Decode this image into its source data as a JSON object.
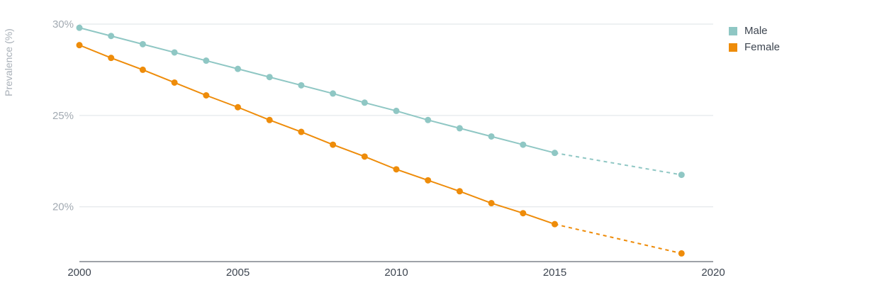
{
  "chart_data": {
    "type": "line",
    "ylabel": "Prevalence (%)",
    "xlim": [
      2000,
      2020
    ],
    "ylim": [
      17,
      30
    ],
    "grid": true,
    "legend_placement": "top-right",
    "x_ticks": [
      "2000",
      "2005",
      "2010",
      "2015",
      "2020"
    ],
    "x_tick_values": [
      2000,
      2005,
      2010,
      2015,
      2020
    ],
    "y_ticks": [
      "20%",
      "25%",
      "30%"
    ],
    "y_tick_values": [
      20,
      25,
      30
    ],
    "series": [
      {
        "name": "Male",
        "color": "#8fc7c4",
        "x": [
          2000,
          2001,
          2002,
          2003,
          2004,
          2005,
          2006,
          2007,
          2008,
          2009,
          2010,
          2011,
          2012,
          2013,
          2014,
          2015
        ],
        "values": [
          29.8,
          29.35,
          28.9,
          28.45,
          28.0,
          27.55,
          27.1,
          26.65,
          26.2,
          25.7,
          25.25,
          24.75,
          24.3,
          23.85,
          23.4,
          22.95
        ],
        "projection": {
          "x": [
            2015,
            2019
          ],
          "values": [
            22.95,
            21.75
          ]
        }
      },
      {
        "name": "Female",
        "color": "#ee8c0a",
        "x": [
          2000,
          2001,
          2002,
          2003,
          2004,
          2005,
          2006,
          2007,
          2008,
          2009,
          2010,
          2011,
          2012,
          2013,
          2014,
          2015
        ],
        "values": [
          28.85,
          28.15,
          27.5,
          26.8,
          26.1,
          25.45,
          24.75,
          24.1,
          23.4,
          22.75,
          22.05,
          21.45,
          20.85,
          20.2,
          19.65,
          19.05
        ],
        "projection": {
          "x": [
            2015,
            2019
          ],
          "values": [
            19.05,
            17.45
          ]
        }
      }
    ]
  }
}
